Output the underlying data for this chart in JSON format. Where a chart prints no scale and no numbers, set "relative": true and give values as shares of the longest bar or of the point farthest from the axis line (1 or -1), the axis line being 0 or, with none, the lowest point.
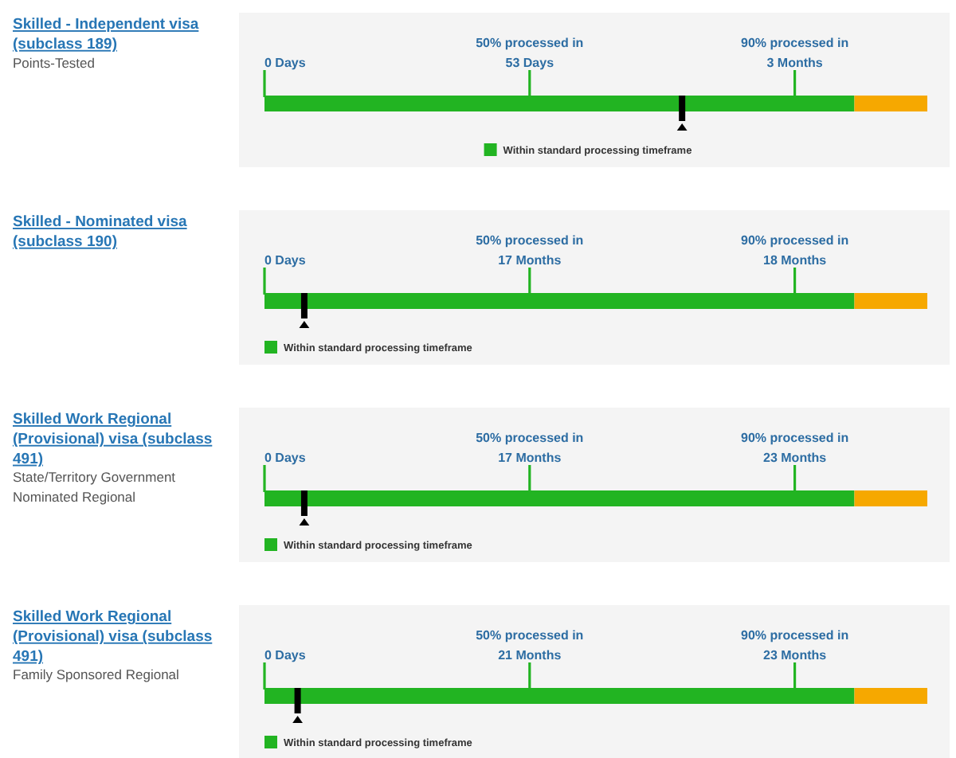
{
  "chart_data": [
    {
      "type": "bar",
      "orientation": "horizontal",
      "stacked": true,
      "relative": true,
      "title": "Skilled - Independent visa (subclass 189)",
      "annotations": [
        "Points-Tested"
      ],
      "categories": [
        null
      ],
      "series": [
        {
          "name": "Within standard processing timeframe",
          "color": "#22b422",
          "values": [
            0.89
          ]
        },
        {
          "color": "#f6a800",
          "values": [
            0.11
          ]
        }
      ],
      "ref_lines": [
        {
          "axis": "x",
          "value": 0,
          "label": "0 Days",
          "color": "#22b422"
        },
        {
          "axis": "x",
          "value": 0.4,
          "label": "50% processed in\n53 Days",
          "color": "#22b422"
        },
        {
          "axis": "x",
          "value": 0.8,
          "label": "90% processed in\n3 Months",
          "color": "#22b422"
        },
        {
          "axis": "x",
          "value": 0.63,
          "color": "#000000"
        }
      ],
      "legend": "bottom"
    },
    {
      "type": "bar",
      "orientation": "horizontal",
      "stacked": true,
      "relative": true,
      "title": "Skilled - Nominated visa (subclass 190)",
      "categories": [
        null
      ],
      "series": [
        {
          "name": "Within standard processing timeframe",
          "color": "#22b422",
          "values": [
            0.89
          ]
        },
        {
          "color": "#f6a800",
          "values": [
            0.11
          ]
        }
      ],
      "ref_lines": [
        {
          "axis": "x",
          "value": 0,
          "label": "0 Days",
          "color": "#22b422"
        },
        {
          "axis": "x",
          "value": 0.4,
          "label": "50% processed in\n17 Months",
          "color": "#22b422"
        },
        {
          "axis": "x",
          "value": 0.8,
          "label": "90% processed in\n18 Months",
          "color": "#22b422"
        },
        {
          "axis": "x",
          "value": 0.06,
          "color": "#000000"
        }
      ],
      "legend": "bottom left"
    },
    {
      "type": "bar",
      "orientation": "horizontal",
      "stacked": true,
      "relative": true,
      "title": "Skilled Work Regional (Provisional) visa (subclass 491)",
      "annotations": [
        "State/Territory Government Nominated Regional"
      ],
      "categories": [
        null
      ],
      "series": [
        {
          "name": "Within standard processing timeframe",
          "color": "#22b422",
          "values": [
            0.89
          ]
        },
        {
          "color": "#f6a800",
          "values": [
            0.11
          ]
        }
      ],
      "ref_lines": [
        {
          "axis": "x",
          "value": 0,
          "label": "0 Days",
          "color": "#22b422"
        },
        {
          "axis": "x",
          "value": 0.4,
          "label": "50% processed in\n17 Months",
          "color": "#22b422"
        },
        {
          "axis": "x",
          "value": 0.8,
          "label": "90% processed in\n23 Months",
          "color": "#22b422"
        },
        {
          "axis": "x",
          "value": 0.06,
          "color": "#000000"
        }
      ],
      "legend": "bottom left"
    },
    {
      "type": "bar",
      "orientation": "horizontal",
      "stacked": true,
      "relative": true,
      "title": "Skilled Work Regional (Provisional) visa (subclass 491)",
      "annotations": [
        "Family Sponsored Regional"
      ],
      "categories": [
        null
      ],
      "series": [
        {
          "name": "Within standard processing timeframe",
          "color": "#22b422",
          "values": [
            0.89
          ]
        },
        {
          "color": "#f6a800",
          "values": [
            0.11
          ]
        }
      ],
      "ref_lines": [
        {
          "axis": "x",
          "value": 0,
          "label": "0 Days",
          "color": "#22b422"
        },
        {
          "axis": "x",
          "value": 0.4,
          "label": "50% processed in\n21 Months",
          "color": "#22b422"
        },
        {
          "axis": "x",
          "value": 0.8,
          "label": "90% processed in\n23 Months",
          "color": "#22b422"
        },
        {
          "axis": "x",
          "value": 0.05,
          "color": "#000000"
        }
      ],
      "legend": "bottom left"
    }
  ]
}
